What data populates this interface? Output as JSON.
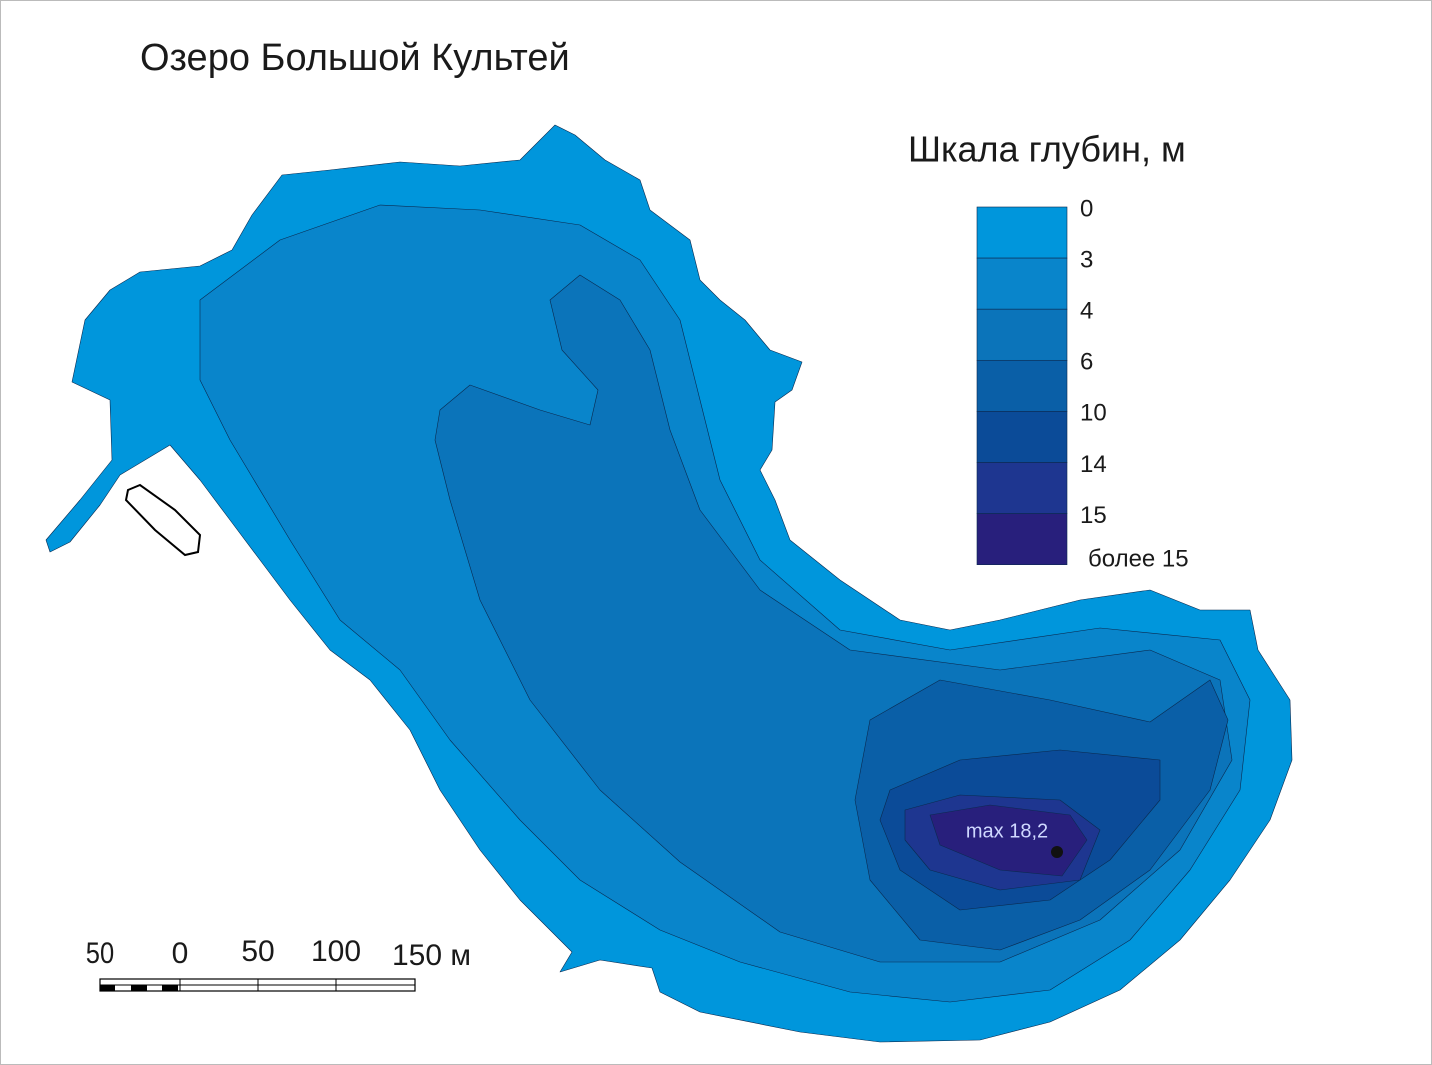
{
  "title": "Озеро Большой Культей",
  "legend": {
    "title": "Шкала глубин, м",
    "labels": [
      "0",
      "3",
      "4",
      "6",
      "10",
      "14",
      "15",
      "более 15"
    ],
    "colors": [
      "#0096dc",
      "#0985cb",
      "#0b74ba",
      "#0a5fa7",
      "#0b4b98",
      "#1e3690",
      "#281f7c"
    ]
  },
  "max_label": "max 18,2",
  "scale_bar": {
    "labels": [
      "50",
      "0",
      "50",
      "100",
      "150 м"
    ]
  }
}
